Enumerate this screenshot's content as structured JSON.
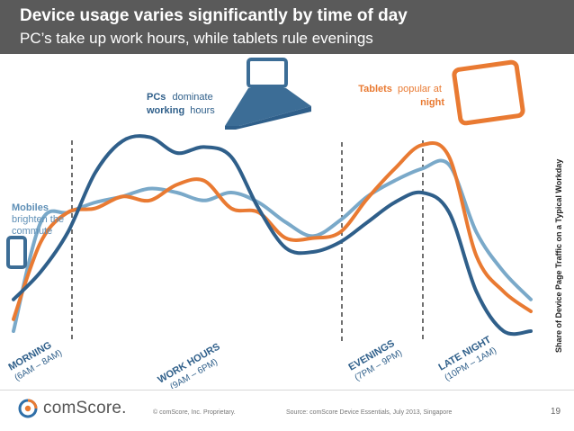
{
  "header": {
    "title": "Device usage varies significantly by time of day",
    "subtitle": "PC’s take up work hours, while tablets rule evenings"
  },
  "chart_data": {
    "type": "line",
    "ylabel": "Share of Device Page Traffic on a Typical Workday",
    "x_points": 20,
    "series": [
      {
        "name": "PC",
        "color": "#2f5f8a",
        "values": [
          0.16,
          0.3,
          0.5,
          0.8,
          0.96,
          0.98,
          0.9,
          0.93,
          0.88,
          0.62,
          0.42,
          0.4,
          0.45,
          0.55,
          0.65,
          0.7,
          0.6,
          0.2,
          0.0,
          0.0
        ]
      },
      {
        "name": "Tablet",
        "color": "#e97a32",
        "values": [
          0.06,
          0.45,
          0.6,
          0.62,
          0.68,
          0.66,
          0.74,
          0.76,
          0.62,
          0.6,
          0.47,
          0.47,
          0.5,
          0.67,
          0.82,
          0.94,
          0.88,
          0.38,
          0.2,
          0.1
        ]
      },
      {
        "name": "Mobile",
        "color": "#7aa9c9",
        "values": [
          0.0,
          0.55,
          0.6,
          0.65,
          0.68,
          0.72,
          0.7,
          0.66,
          0.7,
          0.65,
          0.55,
          0.48,
          0.56,
          0.68,
          0.76,
          0.82,
          0.84,
          0.5,
          0.3,
          0.16
        ]
      }
    ],
    "periods": [
      {
        "name": "MORNING",
        "range": "(6AM – 8AM)"
      },
      {
        "name": "WORK HOURS",
        "range": "(9AM – 6PM)"
      },
      {
        "name": "EVENINGS",
        "range": "(7PM – 9PM)"
      },
      {
        "name": "LATE NIGHT",
        "range": "(10PM – 1AM)"
      }
    ],
    "annotations": {
      "mobile": {
        "bold": "Mobiles",
        "rest": [
          "brighten the",
          "commute"
        ],
        "color": "#5e8fb6"
      },
      "pc": {
        "bold": "PCs",
        "rest": [
          "dominate",
          "working",
          "hours"
        ],
        "color": "#2f5f8a"
      },
      "tablet": {
        "bold": "Tablets",
        "rest": [
          "popular at",
          "night"
        ],
        "color": "#e97a32"
      }
    }
  },
  "footer": {
    "brand": "comScore.",
    "copyright": "© comScore, Inc.",
    "proprietary": "Proprietary.",
    "source": "Source: comScore Device Essentials, July 2013, Singapore",
    "page": "19"
  }
}
